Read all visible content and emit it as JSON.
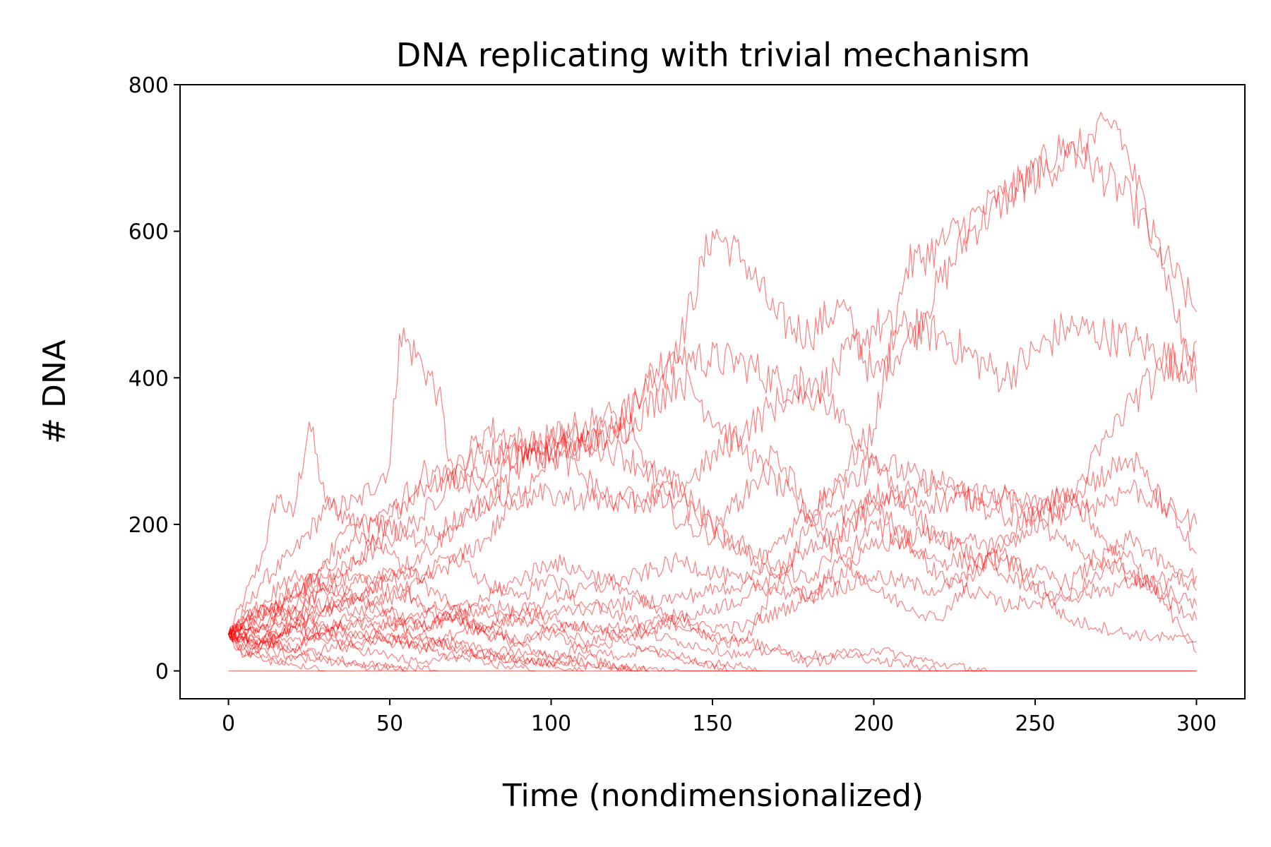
{
  "chart_data": {
    "type": "line",
    "title": "DNA replicating with trivial mechanism",
    "xlabel": "Time (nondimensionalized)",
    "ylabel": "# DNA",
    "xlim": [
      -15,
      315
    ],
    "ylim": [
      -38,
      800
    ],
    "xticks": [
      0,
      50,
      100,
      150,
      200,
      250,
      300
    ],
    "yticks": [
      0,
      200,
      400,
      600,
      800
    ],
    "grid": false,
    "legend": "none",
    "line_color": "#ff0000",
    "line_opacity": 0.5,
    "series": [
      {
        "x": [
          0,
          5,
          10,
          15,
          20,
          25,
          30,
          40,
          50,
          60,
          80,
          100,
          120,
          140,
          160,
          200,
          250,
          300
        ],
        "y": [
          50,
          100,
          150,
          240,
          210,
          340,
          230,
          200,
          160,
          120,
          50,
          20,
          5,
          0,
          0,
          0,
          0,
          0
        ]
      },
      {
        "x": [
          0,
          5,
          10,
          20,
          30,
          40,
          50,
          53,
          60,
          65,
          70,
          80,
          90,
          100,
          110,
          120,
          130,
          140,
          150,
          160,
          170,
          180,
          190,
          200,
          210,
          230,
          240,
          260,
          280,
          300
        ],
        "y": [
          50,
          80,
          120,
          160,
          220,
          230,
          280,
          460,
          420,
          380,
          250,
          280,
          300,
          290,
          310,
          330,
          400,
          450,
          600,
          560,
          480,
          460,
          500,
          400,
          450,
          600,
          640,
          720,
          640,
          490
        ]
      },
      {
        "x": [
          0,
          10,
          20,
          40,
          60,
          80,
          100,
          120,
          140,
          160,
          180,
          200,
          220,
          240,
          260,
          280,
          300
        ],
        "y": [
          50,
          60,
          100,
          180,
          250,
          300,
          300,
          340,
          430,
          420,
          370,
          470,
          460,
          400,
          470,
          450,
          410
        ]
      },
      {
        "x": [
          0,
          10,
          20,
          40,
          60,
          80,
          100,
          120,
          140,
          160,
          180,
          200,
          210,
          220,
          240,
          260,
          275,
          290,
          300
        ],
        "y": [
          50,
          40,
          80,
          150,
          210,
          330,
          300,
          320,
          400,
          300,
          210,
          330,
          550,
          580,
          650,
          700,
          750,
          550,
          380
        ]
      },
      {
        "x": [
          0,
          10,
          20,
          40,
          60,
          80,
          100,
          120,
          140,
          160,
          180,
          200,
          220,
          240,
          260,
          280,
          300
        ],
        "y": [
          50,
          70,
          110,
          150,
          270,
          250,
          330,
          300,
          250,
          330,
          400,
          290,
          250,
          240,
          210,
          250,
          200
        ]
      },
      {
        "x": [
          0,
          10,
          20,
          40,
          60,
          80,
          100,
          120,
          140,
          160,
          180,
          200,
          220,
          240,
          260,
          280,
          300
        ],
        "y": [
          50,
          30,
          60,
          100,
          160,
          230,
          320,
          350,
          200,
          170,
          120,
          240,
          230,
          240,
          170,
          130,
          90
        ]
      },
      {
        "x": [
          0,
          10,
          20,
          40,
          60,
          80,
          100,
          120,
          140,
          160,
          180,
          200,
          220,
          240,
          260,
          280,
          300
        ],
        "y": [
          50,
          40,
          30,
          80,
          120,
          180,
          300,
          230,
          230,
          160,
          100,
          200,
          150,
          150,
          120,
          180,
          110
        ]
      },
      {
        "x": [
          0,
          10,
          20,
          40,
          60,
          80,
          100,
          120,
          140,
          160,
          180,
          200,
          220,
          240,
          260,
          280,
          300
        ],
        "y": [
          50,
          60,
          40,
          70,
          60,
          100,
          150,
          120,
          60,
          60,
          100,
          130,
          110,
          160,
          70,
          50,
          40
        ]
      },
      {
        "x": [
          0,
          10,
          20,
          40,
          60,
          80,
          100,
          120,
          140,
          160,
          180,
          200,
          220,
          240,
          260,
          280,
          300
        ],
        "y": [
          50,
          30,
          20,
          40,
          80,
          60,
          100,
          120,
          150,
          120,
          100,
          170,
          190,
          130,
          100,
          160,
          25
        ]
      },
      {
        "x": [
          0,
          10,
          20,
          40,
          60,
          80,
          100,
          120,
          140,
          160,
          170,
          180,
          200,
          210,
          220,
          235
        ],
        "y": [
          50,
          80,
          110,
          130,
          90,
          80,
          60,
          60,
          40,
          20,
          30,
          10,
          30,
          20,
          10,
          0
        ]
      },
      {
        "x": [
          0,
          10,
          20,
          30,
          40,
          60,
          80,
          100,
          120,
          140,
          150,
          160,
          170,
          180,
          200,
          220,
          240,
          260,
          280,
          300
        ],
        "y": [
          50,
          60,
          90,
          150,
          210,
          180,
          230,
          240,
          230,
          250,
          200,
          240,
          300,
          210,
          110,
          70,
          180,
          250,
          130,
          70
        ]
      },
      {
        "x": [
          0,
          10,
          20,
          40,
          60,
          80,
          100,
          120,
          140,
          150,
          160,
          180,
          200,
          220,
          240,
          260,
          280,
          300
        ],
        "y": [
          50,
          40,
          60,
          100,
          60,
          90,
          70,
          50,
          80,
          40,
          40,
          200,
          230,
          130,
          90,
          100,
          120,
          130
        ]
      },
      {
        "x": [
          0,
          5,
          10,
          20,
          40,
          60,
          80,
          100,
          120,
          140,
          160,
          180,
          200,
          220,
          240,
          260,
          280,
          300
        ],
        "y": [
          50,
          20,
          30,
          60,
          50,
          40,
          60,
          80,
          90,
          100,
          120,
          220,
          280,
          180,
          170,
          230,
          370,
          450
        ]
      },
      {
        "x": [
          0,
          10,
          20,
          40,
          60,
          80,
          100,
          120,
          140,
          160,
          180,
          200,
          220,
          240,
          260,
          280,
          300
        ],
        "y": [
          50,
          90,
          130,
          100,
          40,
          30,
          20,
          40,
          70,
          100,
          170,
          220,
          260,
          210,
          240,
          290,
          160
        ]
      },
      {
        "x": [
          0,
          5,
          10,
          20,
          30,
          40,
          50,
          60,
          70,
          80,
          90,
          95
        ],
        "y": [
          50,
          70,
          40,
          30,
          50,
          30,
          20,
          10,
          20,
          10,
          5,
          0
        ]
      },
      {
        "x": [
          0,
          10,
          20,
          30,
          40,
          50,
          60,
          70,
          80,
          100,
          110,
          120,
          130
        ],
        "y": [
          50,
          40,
          60,
          50,
          70,
          40,
          30,
          40,
          20,
          10,
          20,
          5,
          0
        ]
      },
      {
        "x": [
          0,
          5,
          10,
          15,
          20,
          30,
          40,
          50,
          60,
          65
        ],
        "y": [
          50,
          30,
          20,
          10,
          20,
          15,
          8,
          5,
          2,
          0
        ]
      },
      {
        "x": [
          0,
          10,
          20,
          30,
          40,
          50,
          60,
          70,
          80,
          90,
          100,
          110
        ],
        "y": [
          50,
          70,
          80,
          60,
          50,
          40,
          50,
          30,
          20,
          15,
          10,
          0
        ]
      },
      {
        "x": [
          0,
          5,
          10,
          15,
          20,
          25,
          30
        ],
        "y": [
          50,
          30,
          20,
          15,
          8,
          3,
          0
        ]
      },
      {
        "x": [
          0,
          10,
          20,
          30,
          40,
          50,
          60,
          70,
          80,
          90,
          100,
          110,
          120,
          130,
          140,
          150,
          155
        ],
        "y": [
          50,
          80,
          100,
          90,
          70,
          80,
          60,
          70,
          50,
          40,
          60,
          40,
          50,
          30,
          20,
          10,
          0
        ]
      },
      {
        "x": [
          0,
          10,
          20,
          30,
          40,
          50,
          60,
          70,
          80,
          90,
          100,
          110,
          120,
          130,
          140,
          150,
          160,
          170,
          180,
          190,
          200,
          210,
          220
        ],
        "y": [
          50,
          60,
          70,
          90,
          120,
          140,
          130,
          160,
          120,
          100,
          130,
          90,
          80,
          60,
          70,
          50,
          40,
          30,
          20,
          25,
          15,
          10,
          0
        ]
      },
      {
        "x": [
          0,
          5,
          10,
          20,
          30,
          40,
          50,
          55
        ],
        "y": [
          50,
          20,
          40,
          30,
          20,
          10,
          5,
          0
        ]
      },
      {
        "x": [
          0,
          10,
          20,
          30,
          40,
          50,
          60,
          70,
          80,
          90,
          100,
          110,
          120,
          130,
          140,
          150,
          160,
          165
        ],
        "y": [
          50,
          90,
          70,
          110,
          100,
          130,
          90,
          70,
          60,
          40,
          50,
          30,
          20,
          30,
          15,
          10,
          5,
          0
        ]
      },
      {
        "x": [
          0,
          10,
          20,
          30,
          40,
          50,
          60,
          70,
          80,
          90,
          100,
          110,
          120,
          125
        ],
        "y": [
          50,
          40,
          60,
          40,
          30,
          50,
          30,
          20,
          25,
          15,
          10,
          8,
          5,
          0
        ]
      },
      {
        "x": [
          0,
          300
        ],
        "y": [
          0,
          0
        ]
      }
    ]
  }
}
